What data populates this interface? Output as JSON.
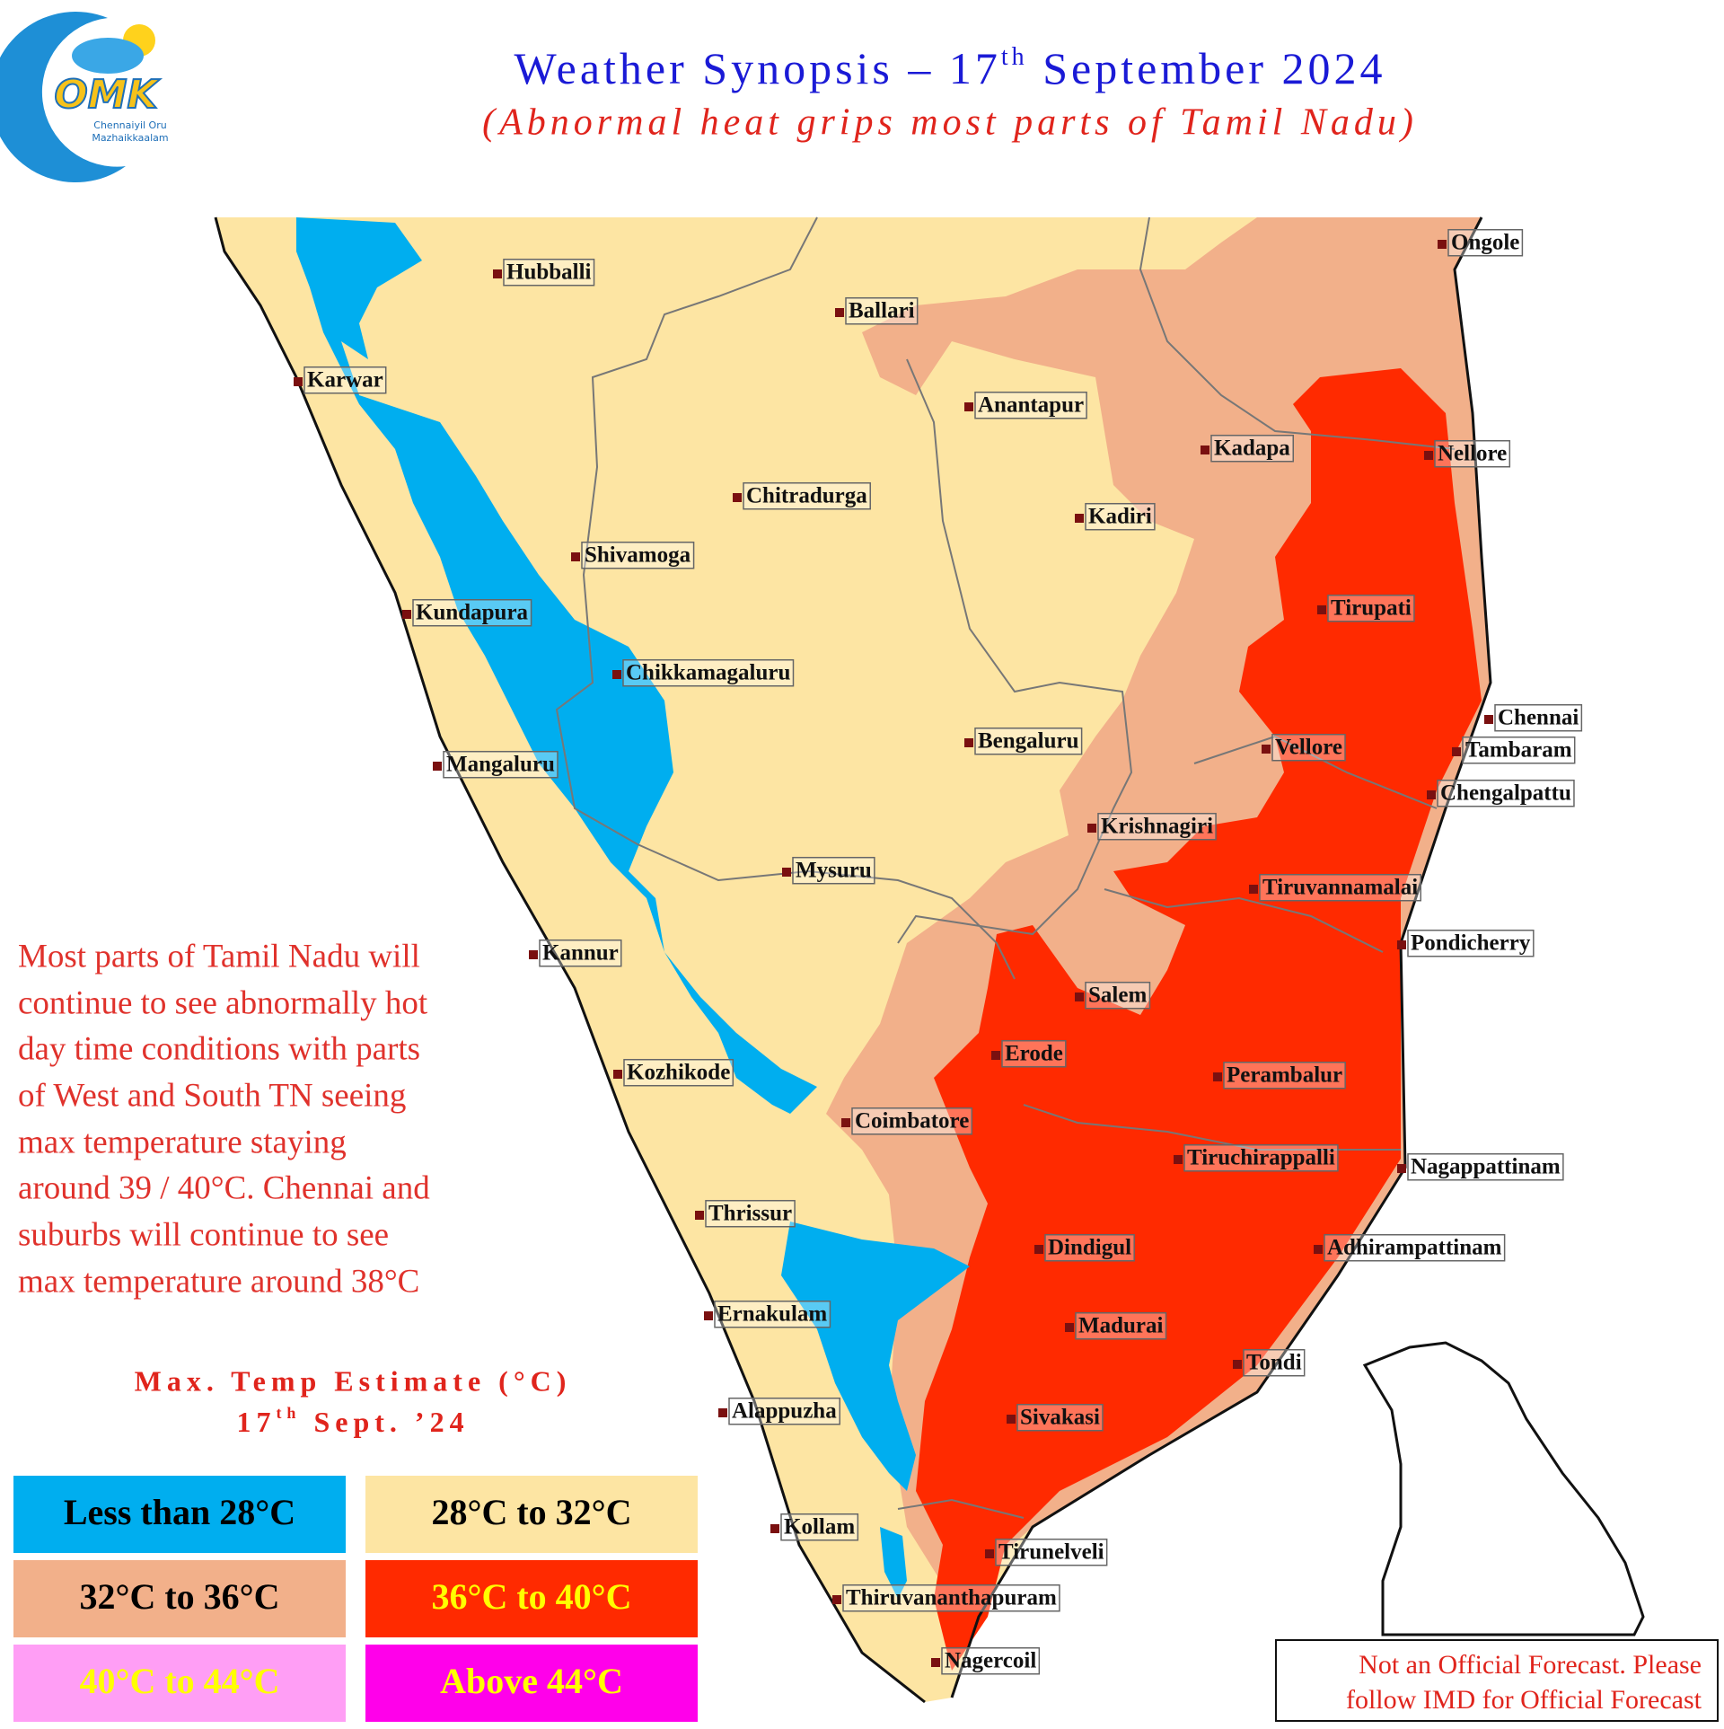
{
  "logo": {
    "initials": "OMK",
    "line_1": "Chennaiyil Oru",
    "line_2": "Mazhaikkaalam"
  },
  "header": {
    "title": [
      "Weather Synopsis – 17",
      "th",
      " September 2024"
    ],
    "subtitle": "(Abnormal heat grips most parts of Tamil Nadu)"
  },
  "description": [
    "Most parts of Tamil Nadu will",
    "continue to see abnormally hot",
    "day time conditions with parts",
    "of West and South TN seeing",
    "max temperature staying",
    "around 39 / 40°C. Chennai and",
    "suburbs will continue to see",
    "max temperature around 38°C"
  ],
  "legend": {
    "title": "Max. Temp Estimate (°C)",
    "date": [
      "17",
      "th",
      " Sept. ’24"
    ],
    "items": [
      {
        "label": "Less than 28°C",
        "color": "#00aeef",
        "text_color": "#000000"
      },
      {
        "label": "28°C to 32°C",
        "color": "#fde5a3",
        "text_color": "#000000"
      },
      {
        "label": "32°C to 36°C",
        "color": "#f2b08a",
        "text_color": "#000000"
      },
      {
        "label": "36°C to 40°C",
        "color": "#ff2a00",
        "text_color": "#ffff00"
      },
      {
        "label": "40°C to 44°C",
        "color": "#ff9ef5",
        "text_color": "#ffff00"
      },
      {
        "label": "Above 44°C",
        "color": "#ff00ea",
        "text_color": "#ffff00"
      }
    ]
  },
  "cities": [
    "Ongole",
    "Hubballi",
    "Ballari",
    "Karwar",
    "Anantapur",
    "Kadapa",
    "Nellore",
    "Chitradurga",
    "Kadiri",
    "Shivamoga",
    "Kundapura",
    "Tirupati",
    "Chikkamagaluru",
    "Chennai",
    "Bengaluru",
    "Vellore",
    "Tambaram",
    "Mangaluru",
    "Chengalpattu",
    "Krishnagiri",
    "Mysuru",
    "Tiruvannamalai",
    "Pondicherry",
    "Kannur",
    "Salem",
    "Erode",
    "Kozhikode",
    "Perambalur",
    "Coimbatore",
    "Tiruchirappalli",
    "Nagappattinam",
    "Thrissur",
    "Dindigul",
    "Adhirampattinam",
    "Ernakulam",
    "Madurai",
    "Tondi",
    "Alappuzha",
    "Sivakasi",
    "Kollam",
    "Tirunelveli",
    "Thiruvananthapuram",
    "Nagercoil"
  ],
  "disclaimer": [
    "Not an Official Forecast. Please",
    "follow IMD for Official Forecast"
  ]
}
